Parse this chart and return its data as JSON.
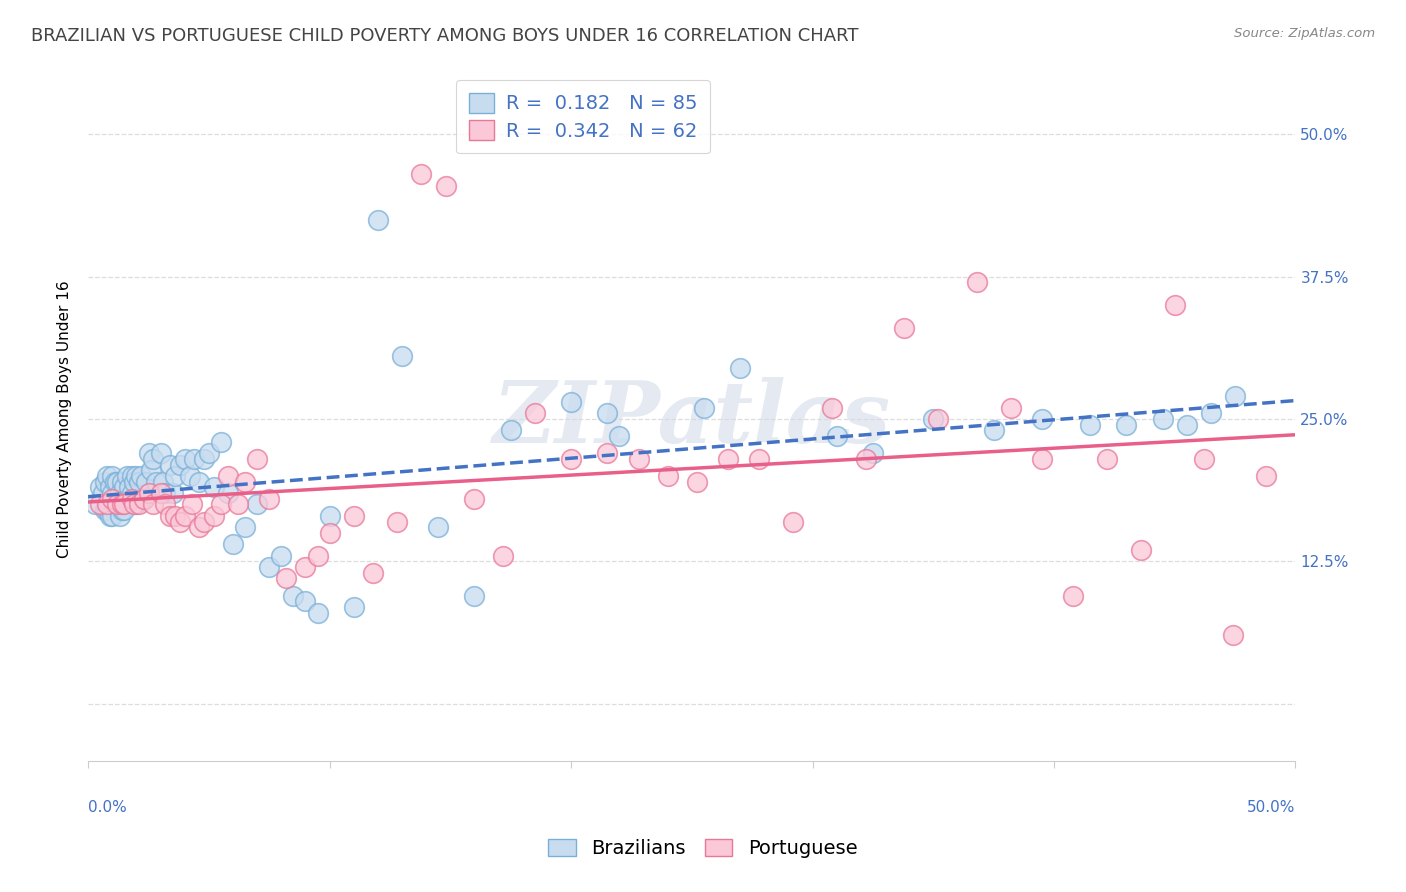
{
  "title": "BRAZILIAN VS PORTUGUESE CHILD POVERTY AMONG BOYS UNDER 16 CORRELATION CHART",
  "source": "Source: ZipAtlas.com",
  "ylabel": "Child Poverty Among Boys Under 16",
  "xlim": [
    0.0,
    0.5
  ],
  "ylim": [
    -0.05,
    0.55
  ],
  "R_brazil": 0.182,
  "N_brazil": 85,
  "R_portugal": 0.342,
  "N_portugal": 62,
  "brazil_dot_face": "#c8dcf0",
  "brazil_dot_edge": "#7ab0d8",
  "portugal_dot_face": "#fac8d8",
  "portugal_dot_edge": "#e87898",
  "brazil_line_color": "#4472c4",
  "portugal_line_color": "#e8608a",
  "axis_text_color": "#4472c4",
  "title_color": "#444444",
  "source_color": "#888888",
  "grid_color": "#dddddd",
  "watermark": "ZIPatlas",
  "background_color": "#ffffff",
  "title_fontsize": 13,
  "axis_label_fontsize": 11,
  "tick_fontsize": 11,
  "legend_fontsize": 14,
  "brazil_x": [
    0.003,
    0.005,
    0.006,
    0.007,
    0.007,
    0.008,
    0.008,
    0.009,
    0.009,
    0.01,
    0.01,
    0.01,
    0.011,
    0.011,
    0.012,
    0.012,
    0.013,
    0.013,
    0.014,
    0.014,
    0.015,
    0.015,
    0.016,
    0.016,
    0.017,
    0.018,
    0.018,
    0.019,
    0.02,
    0.02,
    0.021,
    0.022,
    0.023,
    0.024,
    0.025,
    0.026,
    0.027,
    0.028,
    0.03,
    0.031,
    0.032,
    0.034,
    0.035,
    0.036,
    0.038,
    0.04,
    0.042,
    0.044,
    0.046,
    0.048,
    0.05,
    0.052,
    0.055,
    0.058,
    0.06,
    0.065,
    0.07,
    0.075,
    0.08,
    0.085,
    0.09,
    0.095,
    0.1,
    0.11,
    0.12,
    0.13,
    0.145,
    0.16,
    0.175,
    0.2,
    0.215,
    0.22,
    0.255,
    0.27,
    0.31,
    0.325,
    0.35,
    0.375,
    0.395,
    0.415,
    0.43,
    0.445,
    0.455,
    0.465,
    0.475
  ],
  "brazil_y": [
    0.175,
    0.19,
    0.185,
    0.195,
    0.17,
    0.2,
    0.17,
    0.19,
    0.165,
    0.2,
    0.185,
    0.165,
    0.195,
    0.175,
    0.195,
    0.175,
    0.185,
    0.165,
    0.195,
    0.17,
    0.19,
    0.17,
    0.2,
    0.18,
    0.19,
    0.2,
    0.185,
    0.195,
    0.2,
    0.175,
    0.195,
    0.2,
    0.18,
    0.195,
    0.22,
    0.205,
    0.215,
    0.195,
    0.22,
    0.195,
    0.185,
    0.21,
    0.185,
    0.2,
    0.21,
    0.215,
    0.2,
    0.215,
    0.195,
    0.215,
    0.22,
    0.19,
    0.23,
    0.185,
    0.14,
    0.155,
    0.175,
    0.12,
    0.13,
    0.095,
    0.09,
    0.08,
    0.165,
    0.085,
    0.425,
    0.305,
    0.155,
    0.095,
    0.24,
    0.265,
    0.255,
    0.235,
    0.26,
    0.295,
    0.235,
    0.22,
    0.25,
    0.24,
    0.25,
    0.245,
    0.245,
    0.25,
    0.245,
    0.255,
    0.27
  ],
  "portugal_x": [
    0.005,
    0.008,
    0.01,
    0.012,
    0.014,
    0.015,
    0.018,
    0.019,
    0.021,
    0.023,
    0.025,
    0.027,
    0.03,
    0.032,
    0.034,
    0.036,
    0.038,
    0.04,
    0.043,
    0.046,
    0.048,
    0.052,
    0.055,
    0.058,
    0.062,
    0.065,
    0.07,
    0.075,
    0.082,
    0.09,
    0.095,
    0.1,
    0.11,
    0.118,
    0.128,
    0.138,
    0.148,
    0.16,
    0.172,
    0.185,
    0.2,
    0.215,
    0.228,
    0.24,
    0.252,
    0.265,
    0.278,
    0.292,
    0.308,
    0.322,
    0.338,
    0.352,
    0.368,
    0.382,
    0.395,
    0.408,
    0.422,
    0.436,
    0.45,
    0.462,
    0.474,
    0.488
  ],
  "portugal_y": [
    0.175,
    0.175,
    0.18,
    0.175,
    0.175,
    0.175,
    0.18,
    0.175,
    0.175,
    0.18,
    0.185,
    0.175,
    0.185,
    0.175,
    0.165,
    0.165,
    0.16,
    0.165,
    0.175,
    0.155,
    0.16,
    0.165,
    0.175,
    0.2,
    0.175,
    0.195,
    0.215,
    0.18,
    0.11,
    0.12,
    0.13,
    0.15,
    0.165,
    0.115,
    0.16,
    0.465,
    0.455,
    0.18,
    0.13,
    0.255,
    0.215,
    0.22,
    0.215,
    0.2,
    0.195,
    0.215,
    0.215,
    0.16,
    0.26,
    0.215,
    0.33,
    0.25,
    0.37,
    0.26,
    0.215,
    0.095,
    0.215,
    0.135,
    0.35,
    0.215,
    0.06,
    0.2
  ]
}
